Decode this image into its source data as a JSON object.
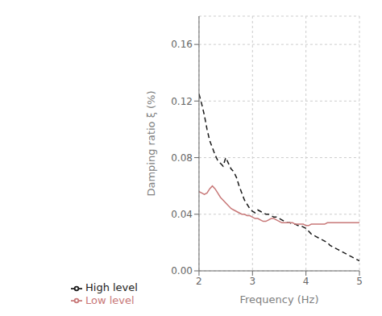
{
  "chart_data": {
    "type": "line",
    "xlabel": "Frequency (Hz)",
    "ylabel": "Damping ratio ξ (%)",
    "xlim": [
      2,
      5
    ],
    "ylim": [
      0.0,
      0.18
    ],
    "xticks": [
      2,
      3,
      4,
      5
    ],
    "yticks": [
      {
        "value": 0,
        "label": "0.00"
      },
      0.04,
      0.08,
      0.12,
      0.16
    ],
    "grid": true,
    "legend": "bottom",
    "x": [
      2.0,
      2.05,
      2.1,
      2.15,
      2.2,
      2.25,
      2.3,
      2.35,
      2.4,
      2.45,
      2.5,
      2.55,
      2.6,
      2.65,
      2.7,
      2.75,
      2.8,
      2.85,
      2.9,
      2.95,
      3.0,
      3.05,
      3.1,
      3.15,
      3.2,
      3.25,
      3.3,
      3.35,
      3.4,
      3.45,
      3.5,
      3.55,
      3.6,
      3.65,
      3.7,
      3.75,
      3.8,
      3.85,
      3.9,
      3.95,
      4.0,
      4.05,
      4.1,
      4.15,
      4.2,
      4.25,
      4.3,
      4.35,
      4.4,
      4.45,
      4.5,
      4.55,
      4.6,
      4.65,
      4.7,
      4.75,
      4.8,
      4.85,
      4.9,
      4.95,
      5.0
    ],
    "series": [
      {
        "name": "High level",
        "color": "#1a1a1a",
        "line_style": "dashed",
        "values": [
          0.125,
          0.118,
          0.11,
          0.1,
          0.092,
          0.087,
          0.082,
          0.078,
          0.076,
          0.074,
          0.08,
          0.076,
          0.072,
          0.07,
          0.066,
          0.06,
          0.055,
          0.05,
          0.047,
          0.044,
          0.042,
          0.041,
          0.043,
          0.042,
          0.041,
          0.04,
          0.04,
          0.039,
          0.038,
          0.038,
          0.037,
          0.036,
          0.035,
          0.034,
          0.034,
          0.033,
          0.033,
          0.032,
          0.032,
          0.031,
          0.03,
          0.028,
          0.026,
          0.025,
          0.024,
          0.023,
          0.022,
          0.021,
          0.02,
          0.018,
          0.017,
          0.016,
          0.015,
          0.014,
          0.013,
          0.012,
          0.011,
          0.01,
          0.009,
          0.008,
          0.007
        ]
      },
      {
        "name": "Low level",
        "color": "#c87878",
        "line_style": "solid",
        "values": [
          0.056,
          0.055,
          0.054,
          0.055,
          0.058,
          0.06,
          0.058,
          0.055,
          0.052,
          0.05,
          0.048,
          0.046,
          0.044,
          0.043,
          0.042,
          0.041,
          0.04,
          0.04,
          0.039,
          0.039,
          0.038,
          0.037,
          0.037,
          0.036,
          0.035,
          0.035,
          0.036,
          0.037,
          0.037,
          0.036,
          0.035,
          0.034,
          0.034,
          0.034,
          0.034,
          0.034,
          0.033,
          0.033,
          0.033,
          0.033,
          0.032,
          0.032,
          0.033,
          0.033,
          0.033,
          0.033,
          0.033,
          0.033,
          0.034,
          0.034,
          0.034,
          0.034,
          0.034,
          0.034,
          0.034,
          0.034,
          0.034,
          0.034,
          0.034,
          0.034,
          0.034
        ]
      }
    ]
  }
}
